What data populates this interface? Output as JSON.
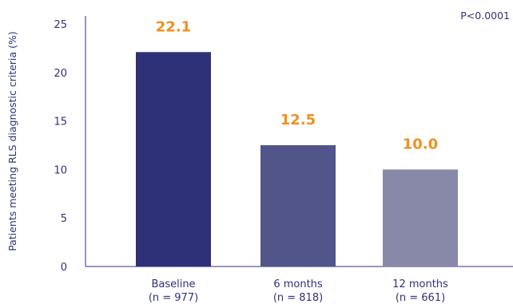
{
  "chart_data": {
    "type": "bar",
    "categories": [
      {
        "line1": "Baseline",
        "line2": "(n = 977)"
      },
      {
        "line1": "6 months",
        "line2": "(n = 818)"
      },
      {
        "line1": "12 months",
        "line2": "(n = 661)"
      }
    ],
    "values": [
      22.1,
      12.5,
      10.0
    ],
    "value_labels": [
      "22.1",
      "12.5",
      "10.0"
    ],
    "bar_colors": [
      "#2e3178",
      "#52558a",
      "#8889a8"
    ],
    "value_label_color": "#f0901e",
    "axis_color": "#2e3178",
    "ylabel": "Patients meeting RLS diagnostic criteria (%)",
    "xlabel": "",
    "ylim": [
      0,
      25
    ],
    "yticks": [
      0,
      5,
      10,
      15,
      20,
      25
    ],
    "ytick_labels": [
      "0",
      "5",
      "10",
      "15",
      "20",
      "25"
    ],
    "annotation": "P<0.0001",
    "grid": false
  }
}
